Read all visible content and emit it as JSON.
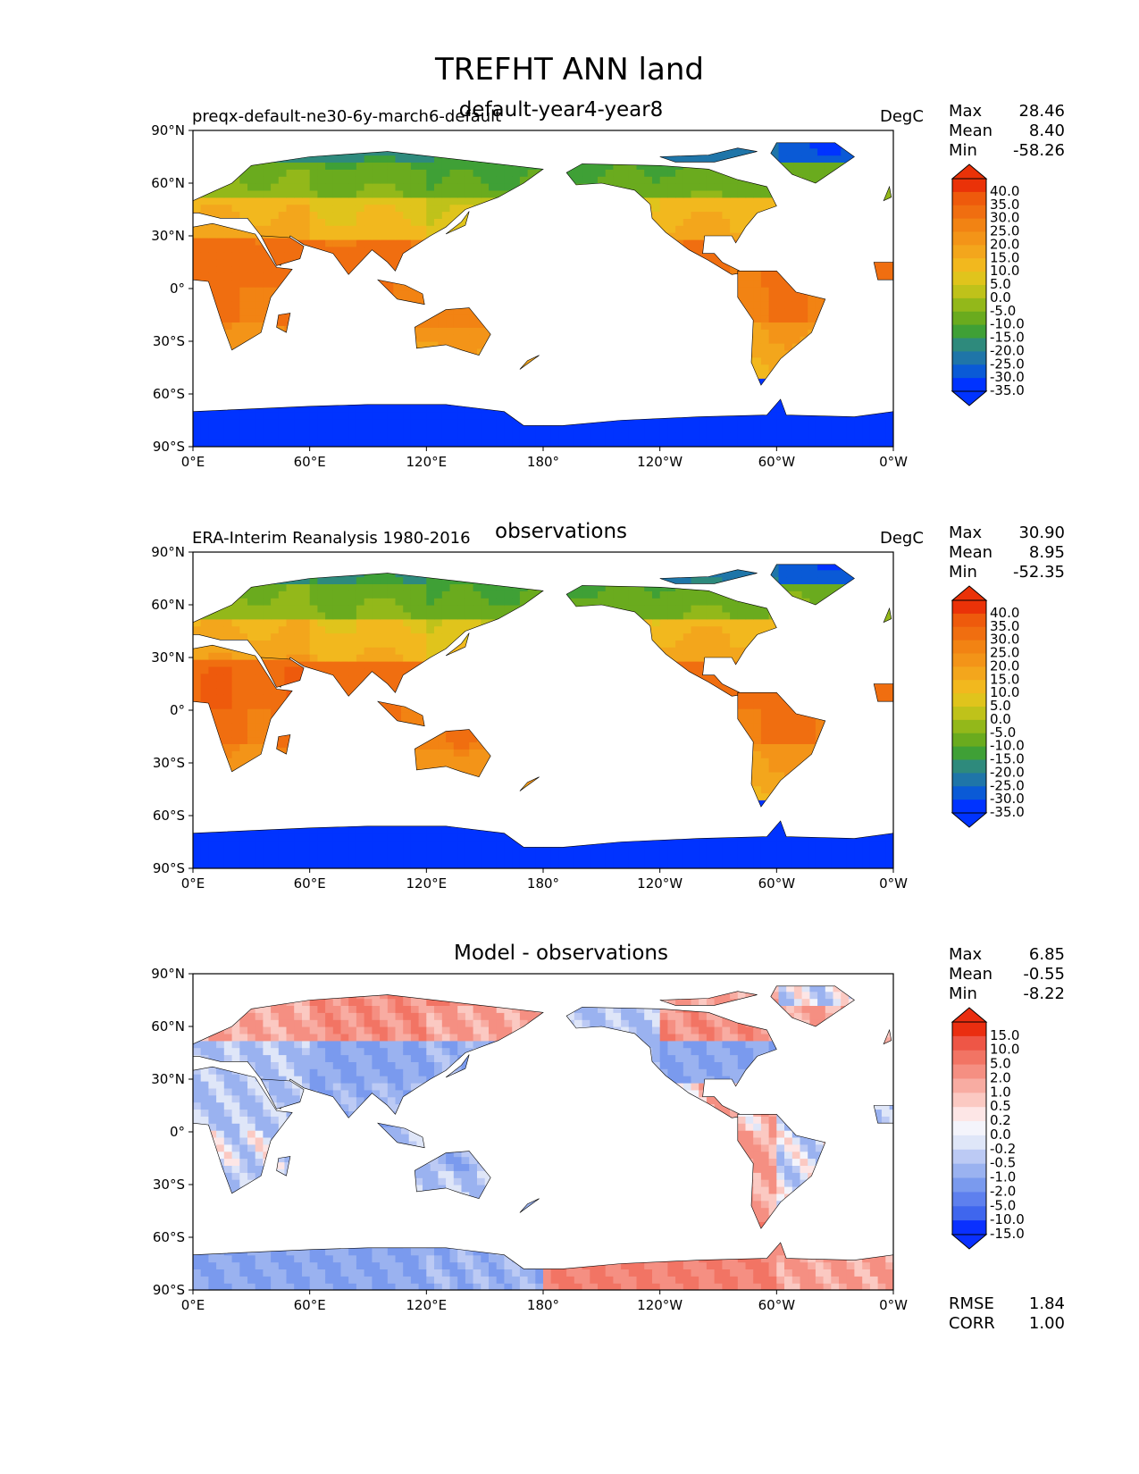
{
  "figure_title": "TREFHT ANN land",
  "chart_data": [
    {
      "type": "heatmap",
      "left_label": "preqx-default-ne30-6y-march6-default",
      "center_title": "default-year4-year8",
      "units": "DegC",
      "stats": [
        {
          "label": "Max",
          "value": "28.46"
        },
        {
          "label": "Mean",
          "value": "8.40"
        },
        {
          "label": "Min",
          "value": "-58.26"
        }
      ],
      "colorbar_ticks": [
        "40.0",
        "35.0",
        "30.0",
        "25.0",
        "20.0",
        "15.0",
        "10.0",
        "5.0",
        "0.0",
        "-5.0",
        "-10.0",
        "-15.0",
        "-20.0",
        "-25.0",
        "-30.0",
        "-35.0"
      ],
      "xticks": [
        "0°E",
        "60°E",
        "120°E",
        "180°",
        "120°W",
        "60°W",
        "0°W"
      ],
      "yticks": [
        "90°N",
        "60°N",
        "30°N",
        "0°",
        "30°S",
        "60°S",
        "90°S"
      ],
      "bands": [
        {
          "lat": 80,
          "values": [
            -10,
            -8,
            -6,
            -9,
            -14,
            -20
          ]
        },
        {
          "lat": 60,
          "values": [
            0,
            -2,
            -5,
            -4,
            -3,
            -1
          ]
        },
        {
          "lat": 40,
          "values": [
            15,
            10,
            5,
            12,
            14,
            16
          ]
        },
        {
          "lat": 15,
          "values": [
            28,
            27,
            26,
            25,
            26,
            27
          ]
        },
        {
          "lat": -15,
          "values": [
            25,
            24,
            23,
            24,
            25,
            25
          ]
        },
        {
          "lat": -30,
          "values": [
            20,
            20,
            19,
            18,
            17,
            17
          ]
        },
        {
          "lat": -75,
          "values": [
            -40,
            -45,
            -48,
            -30,
            -28,
            -35
          ]
        }
      ]
    },
    {
      "type": "heatmap",
      "left_label": "ERA-Interim Reanalysis 1980-2016",
      "center_title": "observations",
      "units": "DegC",
      "stats": [
        {
          "label": "Max",
          "value": "30.90"
        },
        {
          "label": "Mean",
          "value": "8.95"
        },
        {
          "label": "Min",
          "value": "-52.35"
        }
      ],
      "colorbar_ticks": [
        "40.0",
        "35.0",
        "30.0",
        "25.0",
        "20.0",
        "15.0",
        "10.0",
        "5.0",
        "0.0",
        "-5.0",
        "-10.0",
        "-15.0",
        "-20.0",
        "-25.0",
        "-30.0",
        "-35.0"
      ],
      "xticks": [
        "0°E",
        "60°E",
        "120°E",
        "180°",
        "120°W",
        "60°W",
        "0°W"
      ],
      "yticks": [
        "90°N",
        "60°N",
        "30°N",
        "0°",
        "30°S",
        "60°S",
        "90°S"
      ],
      "bands": [
        {
          "lat": 80,
          "values": [
            -9,
            -7,
            -5,
            -8,
            -13,
            -19
          ]
        },
        {
          "lat": 60,
          "values": [
            1,
            -1,
            -4,
            -3,
            -2,
            0
          ]
        },
        {
          "lat": 40,
          "values": [
            16,
            12,
            7,
            13,
            15,
            17
          ]
        },
        {
          "lat": 15,
          "values": [
            29,
            28,
            27,
            26,
            27,
            28
          ]
        },
        {
          "lat": -15,
          "values": [
            26,
            25,
            24,
            25,
            26,
            26
          ]
        },
        {
          "lat": -30,
          "values": [
            21,
            21,
            20,
            19,
            18,
            18
          ]
        },
        {
          "lat": -75,
          "values": [
            -38,
            -42,
            -44,
            -28,
            -26,
            -33
          ]
        }
      ]
    },
    {
      "type": "heatmap",
      "left_label": "",
      "center_title": "Model - observations",
      "units": "",
      "stats": [
        {
          "label": "Max",
          "value": "6.85"
        },
        {
          "label": "Mean",
          "value": "-0.55"
        },
        {
          "label": "Min",
          "value": "-8.22"
        }
      ],
      "colorbar_ticks": [
        "15.0",
        "10.0",
        "5.0",
        "2.0",
        "1.0",
        "0.5",
        "0.2",
        "0.0",
        "-0.2",
        "-0.5",
        "-1.0",
        "-2.0",
        "-5.0",
        "-10.0",
        "-15.0"
      ],
      "xticks": [
        "0°E",
        "60°E",
        "120°E",
        "180°",
        "120°W",
        "60°W",
        "0°W"
      ],
      "yticks": [
        "90°N",
        "60°N",
        "30°N",
        "0°",
        "30°S",
        "60°S",
        "90°S"
      ],
      "bands": [
        {
          "lat": 80,
          "values": [
            1,
            1.5,
            2,
            2,
            1,
            -0.5
          ]
        },
        {
          "lat": 60,
          "values": [
            1,
            1.5,
            1,
            -1,
            1.5,
            1
          ]
        },
        {
          "lat": 40,
          "values": [
            -1,
            -2,
            -1.5,
            -1,
            -2,
            -0.5
          ]
        },
        {
          "lat": 15,
          "values": [
            -1,
            -1.5,
            -0.5,
            -1,
            0.5,
            -1
          ]
        },
        {
          "lat": -15,
          "values": [
            -0.5,
            -1,
            -1.5,
            -1,
            1,
            -0.5
          ]
        },
        {
          "lat": -30,
          "values": [
            -1,
            -1,
            -1,
            0.5,
            1,
            -0.5
          ]
        },
        {
          "lat": -75,
          "values": [
            -2,
            -2,
            -1.5,
            2,
            2,
            1
          ]
        }
      ],
      "extra_stats": [
        {
          "label": "RMSE",
          "value": "1.84"
        },
        {
          "label": "CORR",
          "value": "1.00"
        }
      ]
    }
  ],
  "colors": {
    "temp_scale": [
      "#0033ff",
      "#0a5ad6",
      "#1f75a8",
      "#2e8a7c",
      "#3fa036",
      "#6aab1e",
      "#93b81a",
      "#bfc21a",
      "#e0c41c",
      "#f2b81e",
      "#f3a61c",
      "#f39418",
      "#f28313",
      "#f06e10",
      "#ee5a0c",
      "#ea3208"
    ],
    "diff_scale": [
      "#0a30ff",
      "#3f66ee",
      "#5e80ee",
      "#7a9aee",
      "#9ab2f0",
      "#bccaf4",
      "#dfe6f8",
      "#f4f4fb",
      "#fde6e6",
      "#fbc9c2",
      "#f8aca2",
      "#f58f82",
      "#f27464",
      "#ee5646",
      "#ea2e10"
    ]
  }
}
